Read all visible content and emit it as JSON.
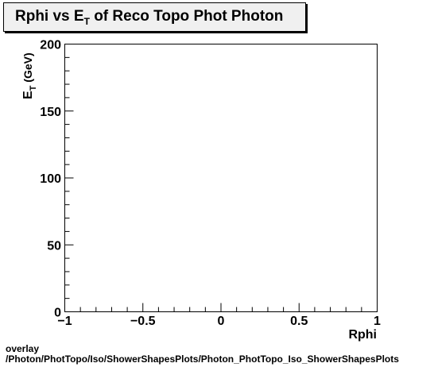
{
  "chart_data": {
    "type": "scatter",
    "title": {
      "before": "Rphi vs E",
      "sub": "T",
      "after": " of Reco Topo Phot Photon"
    },
    "xlabel": "Rphi",
    "ylabel": {
      "main": "E",
      "sub": "T",
      "unit": " (GeV)"
    },
    "xlim": [
      -1,
      1
    ],
    "ylim": [
      0,
      200
    ],
    "xticks": [
      -1,
      -0.5,
      0,
      0.5,
      1
    ],
    "xtick_labels": [
      "−1",
      "−0.5",
      "0",
      "0.5",
      "1"
    ],
    "yticks": [
      0,
      50,
      100,
      150,
      200
    ],
    "ytick_labels": [
      "0",
      "50",
      "100",
      "150",
      "200"
    ],
    "series": [],
    "grid": false
  },
  "footer": {
    "line1": "overlay",
    "line2": "/Photon/PhotTopo/Iso/ShowerShapesPlots/Photon_PhotTopo_Iso_ShowerShapesPlots"
  }
}
